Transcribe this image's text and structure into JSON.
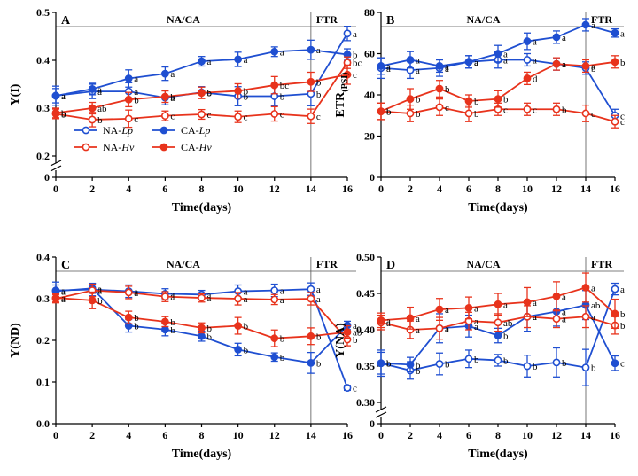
{
  "chart_data": [
    {
      "type": "line",
      "panel_letter": "A",
      "ylabel": "Y(I)",
      "xlabel": "Time(days)",
      "x": [
        0,
        2,
        4,
        6,
        8,
        10,
        12,
        14,
        16
      ],
      "xticks": [
        "0",
        "2",
        "4",
        "6",
        "8",
        "10",
        "12",
        "14",
        "16"
      ],
      "ylim": [
        0.2,
        0.5
      ],
      "yticks": [
        0.2,
        0.3,
        0.4,
        0.5
      ],
      "ytick_labels": [
        "0.2",
        "0.3",
        "0.4",
        "0.5"
      ],
      "axis_break": true,
      "zero_label": "0",
      "period_labels": [
        "NA/CA",
        "FTR"
      ],
      "series": [
        {
          "name": "NA-Lp",
          "color": "#1f4fd1",
          "filled": false,
          "values": [
            0.326,
            0.335,
            0.335,
            0.322,
            0.333,
            0.325,
            0.325,
            0.33,
            0.456
          ],
          "errors": [
            0.02,
            0.015,
            0.018,
            0.015,
            0.012,
            0.02,
            0.02,
            0.025,
            0.015
          ],
          "letters": [
            "a",
            "a",
            "a",
            "a",
            "b",
            "b",
            "b",
            "b",
            "a"
          ]
        },
        {
          "name": "CA-Lp",
          "color": "#1f4fd1",
          "filled": true,
          "values": [
            0.326,
            0.34,
            0.362,
            0.372,
            0.398,
            0.402,
            0.418,
            0.422,
            0.412
          ],
          "errors": [
            0.015,
            0.012,
            0.018,
            0.014,
            0.01,
            0.015,
            0.01,
            0.02,
            0.012
          ],
          "letters": [
            "a",
            "a",
            "a",
            "a",
            "a",
            "a",
            "a",
            "a",
            "b"
          ]
        },
        {
          "name": "NA-Hv",
          "color": "#e8331c",
          "filled": false,
          "values": [
            0.288,
            0.276,
            0.278,
            0.284,
            0.287,
            0.282,
            0.288,
            0.283,
            0.395
          ],
          "errors": [
            0.01,
            0.015,
            0.018,
            0.01,
            0.01,
            0.012,
            0.015,
            0.015,
            0.012
          ],
          "letters": [
            "b",
            "b",
            "c",
            "c",
            "c",
            "c",
            "c",
            "c",
            "bc"
          ]
        },
        {
          "name": "CA-Hv",
          "color": "#e8331c",
          "filled": true,
          "values": [
            0.29,
            0.3,
            0.318,
            0.324,
            0.332,
            0.336,
            0.348,
            0.355,
            0.37
          ],
          "errors": [
            0.01,
            0.012,
            0.015,
            0.012,
            0.012,
            0.015,
            0.018,
            0.02,
            0.02
          ],
          "letters": [
            "b",
            "ab",
            "b",
            "b",
            "b",
            "b",
            "bc",
            "b",
            "c"
          ]
        }
      ]
    },
    {
      "type": "line",
      "panel_letter": "B",
      "ylabel": "ETR",
      "ylabel_sub": "(PSI)",
      "xlabel": "Time(days)",
      "x": [
        0,
        2,
        4,
        6,
        8,
        10,
        12,
        14,
        16
      ],
      "xticks": [
        "0",
        "2",
        "4",
        "6",
        "8",
        "10",
        "12",
        "14",
        "16"
      ],
      "ylim": [
        0,
        80
      ],
      "yticks": [
        0,
        20,
        40,
        60,
        80
      ],
      "ytick_labels": [
        "0",
        "20",
        "40",
        "60",
        "80"
      ],
      "axis_break": false,
      "period_labels": [
        "NA/CA",
        "FTR"
      ],
      "series": [
        {
          "name": "NA-Lp",
          "color": "#1f4fd1",
          "filled": false,
          "values": [
            53,
            52,
            53,
            56,
            57,
            57,
            55,
            53,
            30
          ],
          "errors": [
            5,
            4,
            4,
            3,
            4,
            3,
            3,
            3,
            3
          ],
          "letters": [
            "a",
            "a",
            "a",
            "a",
            "a",
            "a",
            "a",
            "b",
            "c"
          ]
        },
        {
          "name": "CA-Lp",
          "color": "#1f4fd1",
          "filled": true,
          "values": [
            54,
            57,
            54,
            56,
            60,
            66,
            68,
            74,
            70
          ],
          "errors": [
            4,
            4,
            3,
            3,
            4,
            4,
            3,
            3,
            2
          ],
          "letters": [
            "a",
            "a",
            "a",
            "a",
            "a",
            "a",
            "a",
            "a",
            "a"
          ]
        },
        {
          "name": "NA-Hv",
          "color": "#e8331c",
          "filled": false,
          "values": [
            32,
            31,
            34,
            31,
            33,
            33,
            33,
            31,
            27
          ],
          "errors": [
            4,
            4,
            4,
            4,
            3,
            3,
            3,
            4,
            3
          ],
          "letters": [
            "b",
            "b",
            "c",
            "b",
            "c",
            "c",
            "b",
            "c",
            "c"
          ]
        },
        {
          "name": "CA-Hv",
          "color": "#e8331c",
          "filled": true,
          "values": [
            32,
            38,
            43,
            37,
            38,
            48,
            55,
            54,
            56
          ],
          "errors": [
            4,
            5,
            4,
            3,
            4,
            3,
            3,
            3,
            3
          ],
          "letters": [
            "b",
            "b",
            "b",
            "b",
            "b",
            "d",
            "a",
            "a",
            "b"
          ]
        }
      ]
    },
    {
      "type": "line",
      "panel_letter": "C",
      "ylabel": "Y(ND)",
      "xlabel": "Time(days)",
      "x": [
        0,
        2,
        4,
        6,
        8,
        10,
        12,
        14,
        16
      ],
      "xticks": [
        "0",
        "2",
        "4",
        "6",
        "8",
        "10",
        "12",
        "14",
        "16"
      ],
      "ylim": [
        0,
        0.4
      ],
      "yticks": [
        0,
        0.1,
        0.2,
        0.3,
        0.4
      ],
      "ytick_labels": [
        "0.0",
        "0.1",
        "0.2",
        "0.3",
        "0.4"
      ],
      "axis_break": false,
      "period_labels": [
        "NA/CA",
        "FTR"
      ],
      "series": [
        {
          "name": "NA-Lp",
          "color": "#1f4fd1",
          "filled": false,
          "values": [
            0.32,
            0.322,
            0.318,
            0.312,
            0.31,
            0.318,
            0.32,
            0.323,
            0.086
          ],
          "errors": [
            0.02,
            0.015,
            0.015,
            0.012,
            0.01,
            0.015,
            0.015,
            0.015,
            0.006
          ],
          "letters": [
            "a",
            "a",
            "a",
            "a",
            "a",
            "a",
            "a",
            "a",
            "c"
          ]
        },
        {
          "name": "CA-Lp",
          "color": "#1f4fd1",
          "filled": true,
          "values": [
            0.318,
            0.325,
            0.235,
            0.226,
            0.21,
            0.178,
            0.16,
            0.146,
            0.236
          ],
          "errors": [
            0.015,
            0.012,
            0.015,
            0.015,
            0.012,
            0.015,
            0.01,
            0.025,
            0.01
          ],
          "letters": [
            "a",
            "a",
            "b",
            "b",
            "b",
            "b",
            "b",
            "b",
            "a"
          ]
        },
        {
          "name": "NA-Hv",
          "color": "#e8331c",
          "filled": false,
          "values": [
            0.3,
            0.32,
            0.315,
            0.305,
            0.302,
            0.3,
            0.298,
            0.3,
            0.202
          ],
          "errors": [
            0.01,
            0.015,
            0.015,
            0.012,
            0.01,
            0.015,
            0.012,
            0.015,
            0.015
          ],
          "letters": [
            "a",
            "a",
            "a",
            "a",
            "a",
            "a",
            "a",
            "a",
            "b"
          ]
        },
        {
          "name": "CA-Hv",
          "color": "#e8331c",
          "filled": true,
          "values": [
            0.302,
            0.296,
            0.255,
            0.245,
            0.23,
            0.235,
            0.205,
            0.21,
            0.22
          ],
          "errors": [
            0.01,
            0.02,
            0.015,
            0.012,
            0.012,
            0.02,
            0.02,
            0.02,
            0.015
          ],
          "letters": [
            "a",
            "b",
            "b",
            "b",
            "b",
            "b",
            "b",
            "b",
            "ab"
          ]
        }
      ]
    },
    {
      "type": "line",
      "panel_letter": "D",
      "ylabel": "Y(NA)",
      "xlabel": "Time(days)",
      "x": [
        0,
        2,
        4,
        6,
        8,
        10,
        12,
        14,
        16
      ],
      "xticks": [
        "0",
        "2",
        "4",
        "6",
        "8",
        "10",
        "12",
        "14",
        "16"
      ],
      "ylim": [
        0.3,
        0.5
      ],
      "yticks": [
        0.3,
        0.35,
        0.4,
        0.45,
        0.5
      ],
      "ytick_labels": [
        "0.30",
        "0.35",
        "0.40",
        "0.45",
        "0.50"
      ],
      "axis_break": true,
      "zero_label": "0",
      "period_labels": [
        "NA/CA",
        "FTR"
      ],
      "series": [
        {
          "name": "NA-Lp",
          "color": "#1f4fd1",
          "filled": false,
          "values": [
            0.354,
            0.344,
            0.353,
            0.36,
            0.358,
            0.35,
            0.355,
            0.348,
            0.456
          ],
          "errors": [
            0.018,
            0.012,
            0.015,
            0.012,
            0.008,
            0.015,
            0.02,
            0.025,
            0.008
          ],
          "letters": [
            "b",
            "b",
            "b",
            "b",
            "b",
            "b",
            "b",
            "b",
            "a"
          ]
        },
        {
          "name": "CA-Lp",
          "color": "#1f4fd1",
          "filled": true,
          "values": [
            0.354,
            0.352,
            0.402,
            0.405,
            0.392,
            0.418,
            0.425,
            0.434,
            0.354
          ],
          "errors": [
            0.015,
            0.01,
            0.02,
            0.015,
            0.01,
            0.02,
            0.02,
            0.02,
            0.01
          ],
          "letters": [
            "b",
            "b",
            "a",
            "a",
            "b",
            "a",
            "a",
            "ab",
            "c"
          ]
        },
        {
          "name": "NA-Hv",
          "color": "#e8331c",
          "filled": false,
          "values": [
            0.41,
            0.4,
            0.402,
            0.412,
            0.41,
            0.418,
            0.415,
            0.418,
            0.406
          ],
          "errors": [
            0.01,
            0.012,
            0.015,
            0.012,
            0.012,
            0.015,
            0.012,
            0.015,
            0.012
          ],
          "letters": [
            "a",
            "a",
            "a",
            "a",
            "ab",
            "a",
            "a",
            "a",
            "b"
          ]
        },
        {
          "name": "CA-Hv",
          "color": "#e8331c",
          "filled": true,
          "values": [
            0.413,
            0.416,
            0.428,
            0.43,
            0.435,
            0.438,
            0.446,
            0.458,
            0.422
          ],
          "errors": [
            0.01,
            0.015,
            0.015,
            0.015,
            0.015,
            0.02,
            0.02,
            0.02,
            0.02
          ],
          "letters": [
            "a",
            "a",
            "a",
            "a",
            "a",
            "a",
            "a",
            "a",
            "b"
          ]
        }
      ]
    }
  ],
  "legend": [
    {
      "prefix": "NA-",
      "suffix": "Lp",
      "color": "#1f4fd1",
      "filled": false
    },
    {
      "prefix": "CA-",
      "suffix": "Lp",
      "color": "#1f4fd1",
      "filled": true
    },
    {
      "prefix": "NA-",
      "suffix": "Hv",
      "color": "#e8331c",
      "filled": false
    },
    {
      "prefix": "CA-",
      "suffix": "Hv",
      "color": "#e8331c",
      "filled": true
    }
  ]
}
